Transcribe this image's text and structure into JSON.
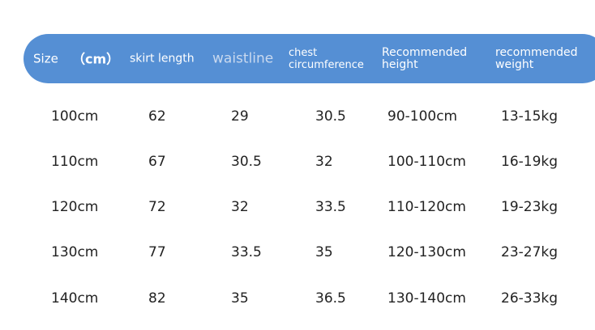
{
  "header": {
    "size": "Size",
    "unit": "（cm）",
    "skirt_length": "skirt length",
    "waistline": "waistline",
    "chest": "chest\ncircumference",
    "height": "Recommended\nheight",
    "weight": "recommended\nweight"
  },
  "colors": {
    "header_bg": "#558fd4",
    "waistline_text": "#c9d9ef"
  },
  "rows": [
    [
      "100cm",
      "62",
      "29",
      "30.5",
      "90-100cm",
      "13-15kg"
    ],
    [
      "110cm",
      "67",
      "30.5",
      "32",
      "100-110cm",
      "16-19kg"
    ],
    [
      "120cm",
      "72",
      "32",
      "33.5",
      "110-120cm",
      "19-23kg"
    ],
    [
      "130cm",
      "77",
      "33.5",
      "35",
      "120-130cm",
      "23-27kg"
    ],
    [
      "140cm",
      "82",
      "35",
      "36.5",
      "130-140cm",
      "26-33kg"
    ]
  ]
}
